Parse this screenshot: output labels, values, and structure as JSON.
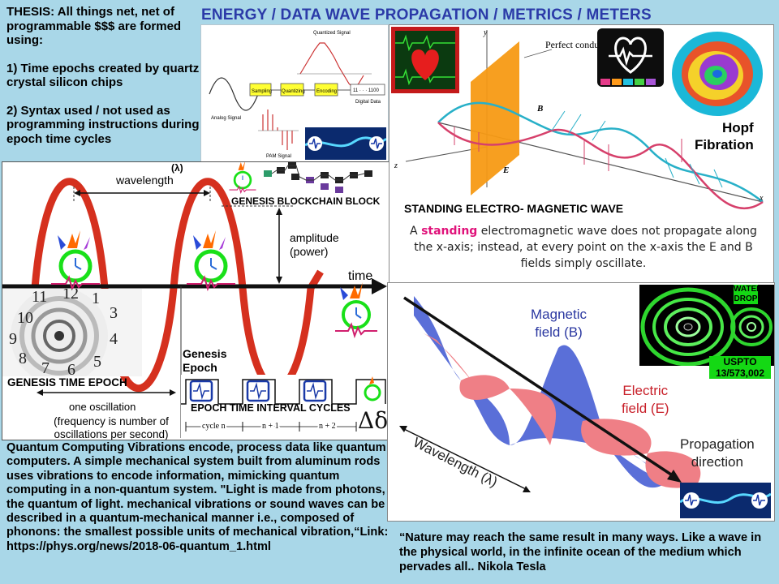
{
  "title": "ENERGY / DATA WAVE PROPAGATION / METRICS / METERS",
  "thesis": {
    "heading": "THESIS: All things net, net of programmable $$$ are formed using:",
    "point1": "1) Time epochs created by quartz crystal silicon chips",
    "point2": "2) Syntax used / not used as programming instructions during epoch time cycles"
  },
  "sampling_diagram": {
    "quantized_label": "Quantized Signal",
    "analog_label": "Analog Signal",
    "pam_label": "PAM Signal",
    "digital_label": "Digital Data",
    "binary_value": "11 · · · 1100",
    "steps": [
      "Sampling",
      "Quantizing",
      "Encoding"
    ]
  },
  "wave_diagram": {
    "lambda_label": "(λ)",
    "wavelength_label": "wavelength",
    "blockchain_label": "GENESIS BLOCKCHAIN BLOCK",
    "amplitude_label": "amplitude",
    "power_label": "(power)",
    "time_label": "time",
    "genesis_epoch_label": "Genesis\nEpoch",
    "genesis_time_label": "GENESIS TIME EPOCH",
    "oscillation_label": "one oscillation",
    "frequency_label": "(frequency is number of oscillations per second)",
    "epoch_cycles_label": "EPOCH TIME INTERVAL CYCLES",
    "cycle_labels": [
      "cycle n",
      "n + 1",
      "n + 2"
    ],
    "delta_symbol": "Δδ",
    "clock_numbers": [
      "11",
      "12",
      "1",
      "10",
      "9",
      "8",
      "7",
      "6",
      "5",
      "4",
      "3"
    ]
  },
  "standing_wave": {
    "conductor_label": "Perfect\nconductor",
    "axis_y": "y",
    "axis_z": "z",
    "axis_x": "x",
    "vector_b": "B",
    "vector_e": "E",
    "hopf_label": "Hopf\nFibration",
    "heading": "STANDING ELECTRO- MAGNETIC WAVE",
    "desc_part1": "A ",
    "desc_highlight": "standing",
    "desc_part2": " electromagnetic wave does not propagate along the x-axis; instead, at every point on the x-axis the E and B fields simply oscillate."
  },
  "em_wave": {
    "magnetic_label": "Magnetic\nfield (B)",
    "electric_label": "Electric\nfield (E)",
    "wavelength_label": "Wavelength (λ)",
    "propagation_label": "Propagation\ndirection",
    "water_drop_label": "WATER\nDROP",
    "uspto_label": "USPTO\n13/573,002"
  },
  "quantum_text": "Quantum Computing Vibrations encode, process data like quantum computers. A simple mechanical system built from aluminum rods uses vibrations to encode information, mimicking quantum computing in a non-quantum system. \"Light is made from photons, the quantum of light. mechanical vibrations or sound waves can be described in a quantum-mechanical manner i.e., composed of phonons: the smallest possible units of mechanical vibration,“Link: https://phys.org/news/2018-06-quantum_1.html",
  "tesla_quote": "“Nature may reach the same result in many ways. Like a wave in the physical world, in the infinite  ocean of the medium which pervades all..  Nikola Tesla",
  "colors": {
    "background": "#a9d7e8",
    "title_blue": "#2b3aa8",
    "wave_red": "#d5301e",
    "magnetic_blue": "#5a6fd8",
    "electric_red": "#ef7f86",
    "conductor_orange": "#f79a14",
    "badge_green": "#14d814"
  }
}
